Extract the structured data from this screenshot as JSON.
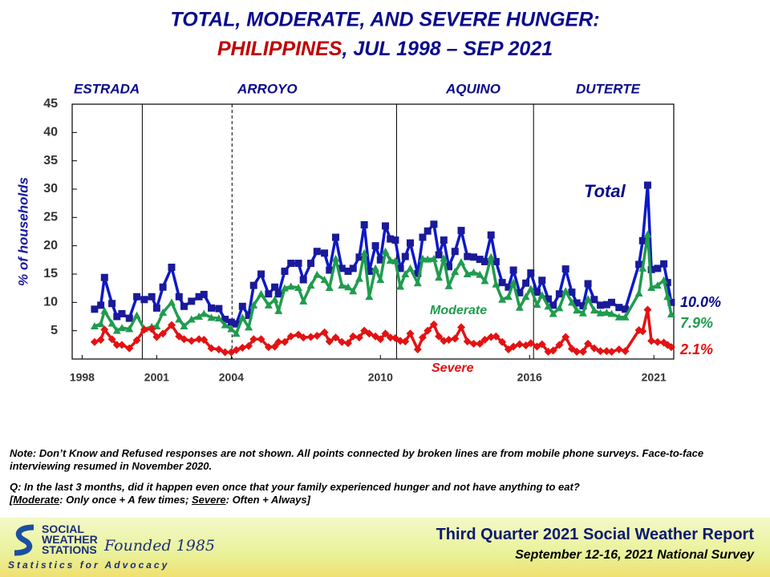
{
  "chart_data": {
    "type": "line",
    "title": "TOTAL, MODERATE, AND SEVERE HUNGER:",
    "subtitle": {
      "highlight": "PHILIPPINES",
      "rest": ", JUL 1998 – SEP 2021"
    },
    "y_label": "% of households",
    "periods": [
      "ESTRADA",
      "ARROYO",
      "AQUINO",
      "DUTERTE"
    ],
    "period_lines": [
      {
        "x": 2000.42,
        "style": "solid"
      },
      {
        "x": 2004.03,
        "style": "dashed"
      },
      {
        "x": 2010.65,
        "style": "solid"
      },
      {
        "x": 2016.16,
        "style": "solid"
      }
    ],
    "xlim": [
      1997.6,
      2021.8
    ],
    "xticks": [
      1998,
      2001,
      2004,
      2010,
      2016,
      2021
    ],
    "ylim": [
      0,
      45
    ],
    "yticks": [
      5,
      10,
      15,
      20,
      25,
      30,
      35,
      40,
      45
    ],
    "grid": false,
    "x": [
      1998.5,
      1998.75,
      1998.9,
      1999.2,
      1999.4,
      1999.6,
      1999.9,
      2000.2,
      2000.5,
      2000.8,
      2001.0,
      2001.25,
      2001.6,
      2001.9,
      2002.1,
      2002.4,
      2002.7,
      2002.9,
      2003.2,
      2003.5,
      2003.75,
      2004.0,
      2004.2,
      2004.45,
      2004.7,
      2004.9,
      2005.2,
      2005.5,
      2005.75,
      2005.9,
      2006.15,
      2006.4,
      2006.7,
      2006.9,
      2007.2,
      2007.45,
      2007.75,
      2007.95,
      2008.2,
      2008.45,
      2008.7,
      2008.9,
      2009.15,
      2009.35,
      2009.55,
      2009.8,
      2010.0,
      2010.2,
      2010.4,
      2010.6,
      2010.8,
      2011.0,
      2011.2,
      2011.5,
      2011.7,
      2011.9,
      2012.15,
      2012.35,
      2012.55,
      2012.75,
      2013.0,
      2013.25,
      2013.5,
      2013.75,
      2014.0,
      2014.2,
      2014.45,
      2014.65,
      2014.9,
      2015.15,
      2015.35,
      2015.6,
      2015.85,
      2016.05,
      2016.3,
      2016.5,
      2016.75,
      2016.95,
      2017.2,
      2017.45,
      2017.7,
      2017.9,
      2018.15,
      2018.35,
      2018.6,
      2018.85,
      2019.1,
      2019.3,
      2019.6,
      2019.85,
      2020.4,
      2020.55,
      2020.75,
      2020.9,
      2021.15,
      2021.4,
      2021.55,
      2021.7
    ],
    "series": [
      {
        "name": "Total",
        "color": "#0c18c8",
        "marker": "square",
        "end_label": "10.0%",
        "label_color": "#0a0a8c",
        "values": [
          8.8,
          9.5,
          14.4,
          9.8,
          7.5,
          8.0,
          7.2,
          11.0,
          10.5,
          11.0,
          9.0,
          12.7,
          16.2,
          11.0,
          9.3,
          10.2,
          11.0,
          11.4,
          9.0,
          8.9,
          7.0,
          6.5,
          6.2,
          9.3,
          7.7,
          13.0,
          15.0,
          11.5,
          12.7,
          11.5,
          15.5,
          16.9,
          16.9,
          14.0,
          16.9,
          19.0,
          18.7,
          15.7,
          21.5,
          16.0,
          15.5,
          16.0,
          18.0,
          23.7,
          15.5,
          20.0,
          17.5,
          23.5,
          21.2,
          21.0,
          16.0,
          18.1,
          20.5,
          15.1,
          21.5,
          22.6,
          23.8,
          18.4,
          21.0,
          16.3,
          19.0,
          22.7,
          18.1,
          18.0,
          17.6,
          17.2,
          21.9,
          17.2,
          13.5,
          12.7,
          15.7,
          11.7,
          13.4,
          15.2,
          11.8,
          13.9,
          10.6,
          9.5,
          11.5,
          15.9,
          11.8,
          9.9,
          9.4,
          13.3,
          10.5,
          9.5,
          9.6,
          10.0,
          9.1,
          8.8,
          16.7,
          20.9,
          30.7,
          15.8,
          16.0,
          16.8,
          13.5,
          10.0
        ]
      },
      {
        "name": "Moderate",
        "color": "#1f9c4e",
        "marker": "triangle",
        "end_label": "7.9%",
        "label_color": "#1f9c4e",
        "values": [
          5.8,
          6.2,
          8.5,
          6.3,
          5.0,
          5.5,
          5.3,
          7.7,
          5.3,
          5.7,
          5.8,
          8.2,
          10.0,
          7.0,
          5.8,
          7.0,
          7.5,
          8.0,
          7.3,
          7.2,
          6.0,
          5.3,
          4.5,
          7.3,
          5.6,
          9.5,
          11.5,
          9.5,
          10.5,
          8.5,
          12.5,
          12.8,
          12.6,
          10.2,
          13.0,
          14.9,
          14.0,
          12.6,
          17.7,
          13.0,
          12.7,
          12.0,
          14.2,
          18.7,
          11.0,
          16.0,
          14.0,
          19.0,
          17.4,
          17.3,
          12.8,
          15.0,
          16.0,
          13.4,
          17.7,
          17.6,
          17.7,
          14.4,
          17.8,
          12.9,
          15.4,
          17.1,
          15.0,
          15.3,
          14.9,
          13.8,
          18.0,
          13.2,
          10.5,
          11.0,
          13.5,
          9.1,
          11.0,
          12.4,
          9.6,
          11.3,
          9.3,
          8.0,
          9.0,
          12.0,
          10.0,
          8.6,
          8.1,
          10.6,
          8.6,
          8.1,
          8.2,
          8.0,
          7.4,
          7.4,
          11.6,
          16.0,
          22.0,
          12.6,
          13.0,
          13.9,
          11.0,
          7.9
        ]
      },
      {
        "name": "Severe",
        "color": "#e31212",
        "marker": "diamond",
        "end_label": "2.1%",
        "label_color": "#e31212",
        "values": [
          3.0,
          3.4,
          5.2,
          3.5,
          2.5,
          2.5,
          1.9,
          3.3,
          5.2,
          5.3,
          3.9,
          4.5,
          6.0,
          4.0,
          3.5,
          3.2,
          3.5,
          3.4,
          1.9,
          1.7,
          1.2,
          1.2,
          1.6,
          2.0,
          2.3,
          3.5,
          3.5,
          2.1,
          2.2,
          3.0,
          3.0,
          4.0,
          4.3,
          3.8,
          3.9,
          4.1,
          4.7,
          3.1,
          3.8,
          3.0,
          2.8,
          4.0,
          3.8,
          5.0,
          4.5,
          4.0,
          3.5,
          4.5,
          3.8,
          3.7,
          3.2,
          3.1,
          4.5,
          1.7,
          3.8,
          5.0,
          6.1,
          4.0,
          3.2,
          3.4,
          3.6,
          5.6,
          3.1,
          2.7,
          2.7,
          3.4,
          3.9,
          4.0,
          3.0,
          1.7,
          2.2,
          2.6,
          2.4,
          2.8,
          2.2,
          2.6,
          1.3,
          1.5,
          2.5,
          3.9,
          1.8,
          1.3,
          1.3,
          2.7,
          1.9,
          1.4,
          1.4,
          1.3,
          1.7,
          1.4,
          5.1,
          4.9,
          8.7,
          3.2,
          3.0,
          2.9,
          2.5,
          2.1
        ]
      }
    ]
  },
  "notes": {
    "note": "Note: Don’t Know and Refused responses are not shown. All points connected by broken lines are from mobile phone surveys. Face-to-face  interviewing resumed in November 2020.",
    "question": "Q: In the last 3 months, did it happen even once that your family experienced hunger and not have anything to eat?",
    "definition": [
      "[",
      "Moderate",
      ": Only once + A few times; ",
      "Severe",
      ": Often + Always]"
    ]
  },
  "footer": {
    "logo_lines": [
      "SOCIAL",
      "WEATHER",
      "STATIONS"
    ],
    "founded": "Founded 1985",
    "tagline": "Statistics for Advocacy",
    "report": "Third Quarter 2021 Social Weather Report",
    "survey": "September 12-16, 2021 National Survey"
  }
}
